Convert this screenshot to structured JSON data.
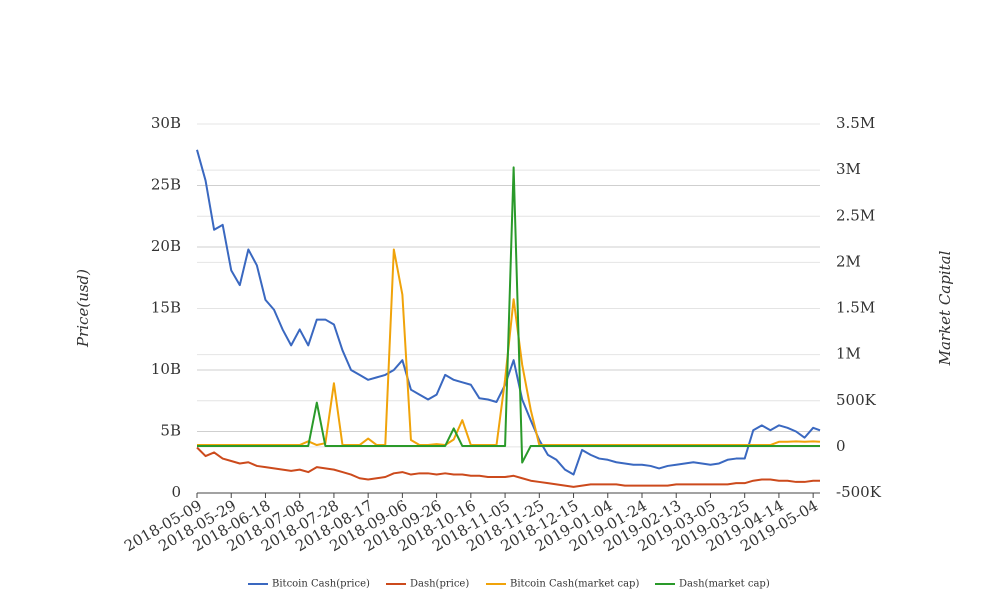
{
  "chart_data": {
    "type": "line",
    "y_label": "Price(usd)",
    "y2_label": "Market Capital",
    "x": [
      "2018-05-09",
      "2018-05-14",
      "2018-05-19",
      "2018-05-24",
      "2018-05-29",
      "2018-06-03",
      "2018-06-08",
      "2018-06-13",
      "2018-06-18",
      "2018-06-23",
      "2018-06-28",
      "2018-07-03",
      "2018-07-08",
      "2018-07-13",
      "2018-07-18",
      "2018-07-23",
      "2018-07-28",
      "2018-08-02",
      "2018-08-07",
      "2018-08-12",
      "2018-08-17",
      "2018-08-22",
      "2018-08-27",
      "2018-09-01",
      "2018-09-06",
      "2018-09-11",
      "2018-09-16",
      "2018-09-21",
      "2018-09-26",
      "2018-10-01",
      "2018-10-06",
      "2018-10-11",
      "2018-10-16",
      "2018-10-21",
      "2018-10-26",
      "2018-10-31",
      "2018-11-05",
      "2018-11-10",
      "2018-11-15",
      "2018-11-20",
      "2018-11-25",
      "2018-11-30",
      "2018-12-05",
      "2018-12-10",
      "2018-12-15",
      "2018-12-20",
      "2018-12-25",
      "2018-12-30",
      "2019-01-04",
      "2019-01-09",
      "2019-01-14",
      "2019-01-19",
      "2019-01-24",
      "2019-01-29",
      "2019-02-03",
      "2019-02-08",
      "2019-02-13",
      "2019-02-18",
      "2019-02-23",
      "2019-02-28",
      "2019-03-05",
      "2019-03-10",
      "2019-03-15",
      "2019-03-20",
      "2019-03-25",
      "2019-03-30",
      "2019-04-04",
      "2019-04-09",
      "2019-04-14",
      "2019-04-19",
      "2019-04-24",
      "2019-04-29",
      "2019-05-04",
      "2019-05-08"
    ],
    "xlim": [
      "2018-05-09",
      "2019-05-08"
    ],
    "xticks": [
      "2018-05-09",
      "2018-05-29",
      "2018-06-18",
      "2018-07-08",
      "2018-07-28",
      "2018-08-17",
      "2018-09-06",
      "2018-09-26",
      "2018-10-16",
      "2018-11-05",
      "2018-11-25",
      "2018-12-15",
      "2019-01-04",
      "2019-01-24",
      "2019-02-13",
      "2019-03-05",
      "2019-03-25",
      "2019-04-14",
      "2019-05-04"
    ],
    "ylim": [
      0,
      30000000000
    ],
    "yticks": [
      0,
      {
        "value": 5000000000,
        "label": "5B"
      },
      {
        "value": 10000000000,
        "label": "10B"
      },
      {
        "value": 15000000000,
        "label": "15B"
      },
      {
        "value": 20000000000,
        "label": "20B"
      },
      {
        "value": 25000000000,
        "label": "25B"
      },
      {
        "value": 30000000000,
        "label": "30B"
      }
    ],
    "y2lim": [
      -500000,
      3500000
    ],
    "y2ticks": [
      {
        "value": -500000,
        "label": "-500K"
      },
      0,
      {
        "value": 500000,
        "label": "500K"
      },
      {
        "value": 1000000,
        "label": "1M"
      },
      {
        "value": 1500000,
        "label": "1.5M"
      },
      {
        "value": 2000000,
        "label": "2M"
      },
      {
        "value": 2500000,
        "label": "2.5M"
      },
      {
        "value": 3000000,
        "label": "3M"
      },
      {
        "value": 3500000,
        "label": "3.5M"
      }
    ],
    "grid": true,
    "legend": "bottom",
    "series": [
      {
        "name": "Bitcoin Cash(price)",
        "color": "#3a68c0",
        "values": [
          27900000000,
          25400000000,
          21400000000,
          21800000000,
          18100000000,
          16900000000,
          19800000000,
          18500000000,
          15700000000,
          14900000000,
          13300000000,
          12000000000,
          13300000000,
          12000000000,
          14100000000,
          14100000000,
          13700000000,
          11600000000,
          10000000000,
          9600000000,
          9200000000,
          9400000000,
          9600000000,
          10000000000,
          10800000000,
          8400000000,
          8000000000,
          7600000000,
          8000000000,
          9600000000,
          9200000000,
          9000000000,
          8800000000,
          7700000000,
          7600000000,
          7400000000,
          8800000000,
          10800000000,
          7600000000,
          5900000000,
          4300000000,
          3100000000,
          2700000000,
          1900000000,
          1500000000,
          3500000000,
          3100000000,
          2800000000,
          2700000000,
          2500000000,
          2400000000,
          2300000000,
          2300000000,
          2200000000,
          2000000000,
          2200000000,
          2300000000,
          2400000000,
          2500000000,
          2400000000,
          2300000000,
          2400000000,
          2700000000,
          2800000000,
          2800000000,
          5100000000,
          5500000000,
          5100000000,
          5500000000,
          5300000000,
          5000000000,
          4500000000,
          5300000000,
          5100000000
        ]
      },
      {
        "name": "Dash(price)",
        "color": "#cc4a1c",
        "values": [
          3700000000,
          3000000000,
          3300000000,
          2800000000,
          2600000000,
          2400000000,
          2500000000,
          2200000000,
          2100000000,
          2000000000,
          1900000000,
          1800000000,
          1900000000,
          1700000000,
          2100000000,
          2000000000,
          1900000000,
          1700000000,
          1500000000,
          1200000000,
          1100000000,
          1200000000,
          1300000000,
          1600000000,
          1700000000,
          1500000000,
          1600000000,
          1600000000,
          1500000000,
          1600000000,
          1500000000,
          1500000000,
          1400000000,
          1400000000,
          1300000000,
          1300000000,
          1300000000,
          1400000000,
          1200000000,
          1000000000,
          900000000,
          800000000,
          700000000,
          600000000,
          500000000,
          600000000,
          700000000,
          700000000,
          700000000,
          700000000,
          600000000,
          600000000,
          600000000,
          600000000,
          600000000,
          600000000,
          700000000,
          700000000,
          700000000,
          700000000,
          700000000,
          700000000,
          700000000,
          800000000,
          800000000,
          1000000000,
          1100000000,
          1100000000,
          1000000000,
          1000000000,
          900000000,
          900000000,
          1000000000,
          1000000000
        ]
      },
      {
        "name": "Bitcoin Cash(market cap)",
        "color": "#f0a30a",
        "axis": "y2",
        "values": [
          20000,
          20000,
          20000,
          20000,
          20000,
          20000,
          20000,
          20000,
          20000,
          20000,
          20000,
          20000,
          20000,
          60000,
          20000,
          40000,
          690000,
          20000,
          20000,
          20000,
          90000,
          20000,
          20000,
          2140000,
          1650000,
          75000,
          20000,
          20000,
          30000,
          20000,
          80000,
          290000,
          20000,
          20000,
          20000,
          20000,
          730000,
          1600000,
          890000,
          400000,
          20000,
          20000,
          20000,
          20000,
          20000,
          20000,
          20000,
          20000,
          20000,
          20000,
          20000,
          20000,
          20000,
          20000,
          20000,
          20000,
          20000,
          20000,
          20000,
          20000,
          20000,
          20000,
          20000,
          20000,
          20000,
          20000,
          20000,
          20000,
          55000,
          55000,
          60000,
          55000,
          60000,
          55000
        ]
      },
      {
        "name": "Dash(market cap)",
        "color": "#2a9a2a",
        "axis": "y2",
        "values": [
          10000,
          10000,
          10000,
          10000,
          10000,
          10000,
          10000,
          10000,
          10000,
          10000,
          10000,
          10000,
          10000,
          10000,
          480000,
          10000,
          10000,
          10000,
          10000,
          10000,
          10000,
          10000,
          10000,
          10000,
          10000,
          10000,
          10000,
          10000,
          10000,
          10000,
          200000,
          10000,
          10000,
          10000,
          10000,
          10000,
          10000,
          3030000,
          -170000,
          10000,
          10000,
          10000,
          10000,
          10000,
          10000,
          10000,
          10000,
          10000,
          10000,
          10000,
          10000,
          10000,
          10000,
          10000,
          10000,
          10000,
          10000,
          10000,
          10000,
          10000,
          10000,
          10000,
          10000,
          10000,
          10000,
          10000,
          10000,
          10000,
          10000,
          10000,
          10000,
          10000,
          10000,
          10000
        ]
      }
    ]
  }
}
